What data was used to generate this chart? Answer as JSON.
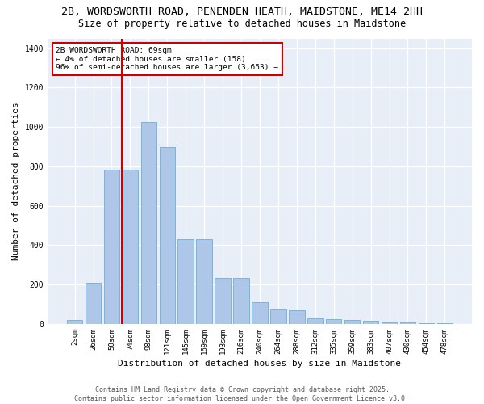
{
  "title_line1": "2B, WORDSWORTH ROAD, PENENDEN HEATH, MAIDSTONE, ME14 2HH",
  "title_line2": "Size of property relative to detached houses in Maidstone",
  "xlabel": "Distribution of detached houses by size in Maidstone",
  "ylabel": "Number of detached properties",
  "bar_color": "#aec6e8",
  "bar_edge_color": "#6baed6",
  "background_color": "#e8eef8",
  "categories": [
    "2sqm",
    "26sqm",
    "50sqm",
    "74sqm",
    "98sqm",
    "121sqm",
    "145sqm",
    "169sqm",
    "193sqm",
    "216sqm",
    "240sqm",
    "264sqm",
    "288sqm",
    "312sqm",
    "335sqm",
    "359sqm",
    "383sqm",
    "407sqm",
    "430sqm",
    "454sqm",
    "478sqm"
  ],
  "values": [
    20,
    210,
    785,
    785,
    1025,
    900,
    430,
    430,
    235,
    235,
    110,
    75,
    70,
    30,
    25,
    20,
    15,
    10,
    10,
    5,
    5
  ],
  "ylim": [
    0,
    1450
  ],
  "yticks": [
    0,
    200,
    400,
    600,
    800,
    1000,
    1200,
    1400
  ],
  "annotation_line1": "2B WORDSWORTH ROAD: 69sqm",
  "annotation_line2": "← 4% of detached houses are smaller (158)",
  "annotation_line3": "96% of semi-detached houses are larger (3,653) →",
  "vline_position": 2.55,
  "vline_color": "#cc0000",
  "annotation_box_color": "#cc0000",
  "footer_line1": "Contains HM Land Registry data © Crown copyright and database right 2025.",
  "footer_line2": "Contains public sector information licensed under the Open Government Licence v3.0.",
  "title_fontsize": 9.5,
  "subtitle_fontsize": 8.5,
  "axis_label_fontsize": 8,
  "tick_fontsize": 6.5,
  "annotation_fontsize": 6.8,
  "footer_fontsize": 6.0
}
